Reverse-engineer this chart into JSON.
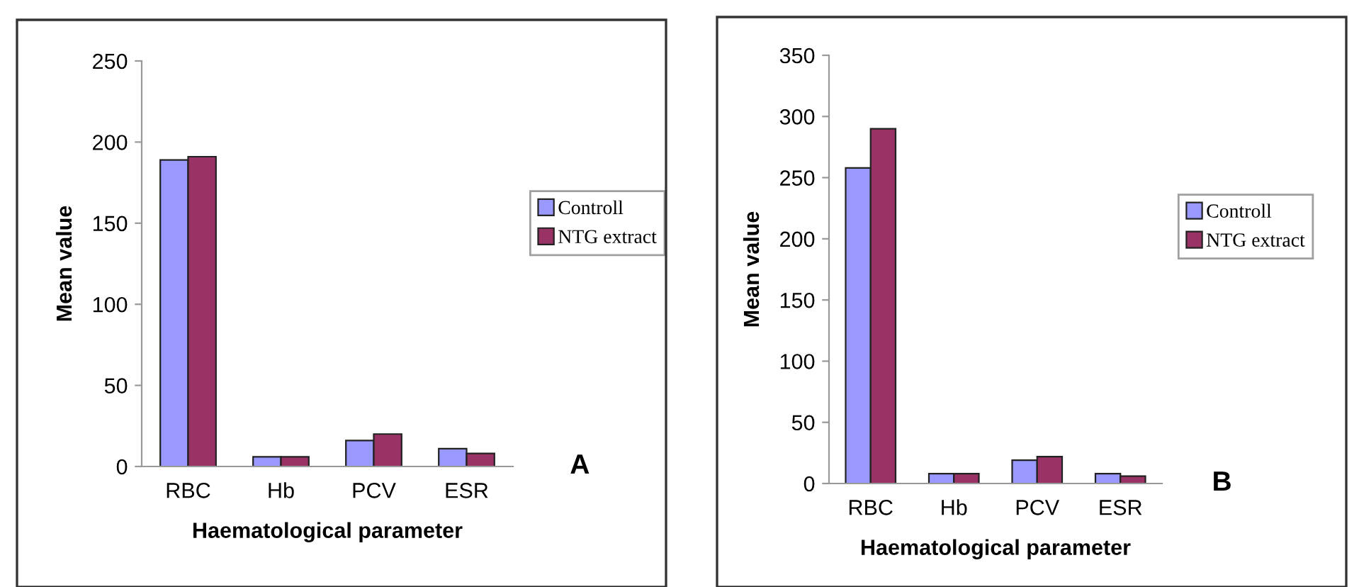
{
  "chart_data": [
    {
      "type": "bar",
      "categories": [
        "RBC",
        "Hb",
        "PCV",
        "ESR"
      ],
      "xlabel": "Haematological parameter",
      "ylabel": "Mean value",
      "ylim": [
        0,
        250
      ],
      "yticks": [
        0,
        50,
        100,
        150,
        200,
        250
      ],
      "grid": false,
      "legend": "right",
      "annotations": [
        "A"
      ],
      "series": [
        {
          "name": "Controll",
          "color": "#9999ff",
          "values": [
            189,
            6,
            16,
            11
          ]
        },
        {
          "name": "NTG extract",
          "color": "#993366",
          "values": [
            191,
            6,
            20,
            8
          ]
        }
      ]
    },
    {
      "type": "bar",
      "categories": [
        "RBC",
        "Hb",
        "PCV",
        "ESR"
      ],
      "xlabel": "Haematological parameter",
      "ylabel": "Mean value",
      "ylim": [
        0,
        350
      ],
      "yticks": [
        0,
        50,
        100,
        150,
        200,
        250,
        300,
        350
      ],
      "grid": false,
      "legend": "right",
      "annotations": [
        "B"
      ],
      "series": [
        {
          "name": "Controll",
          "color": "#9999ff",
          "values": [
            258,
            8,
            19,
            8
          ]
        },
        {
          "name": "NTG extract",
          "color": "#993366",
          "values": [
            290,
            8,
            22,
            6
          ]
        }
      ]
    }
  ]
}
